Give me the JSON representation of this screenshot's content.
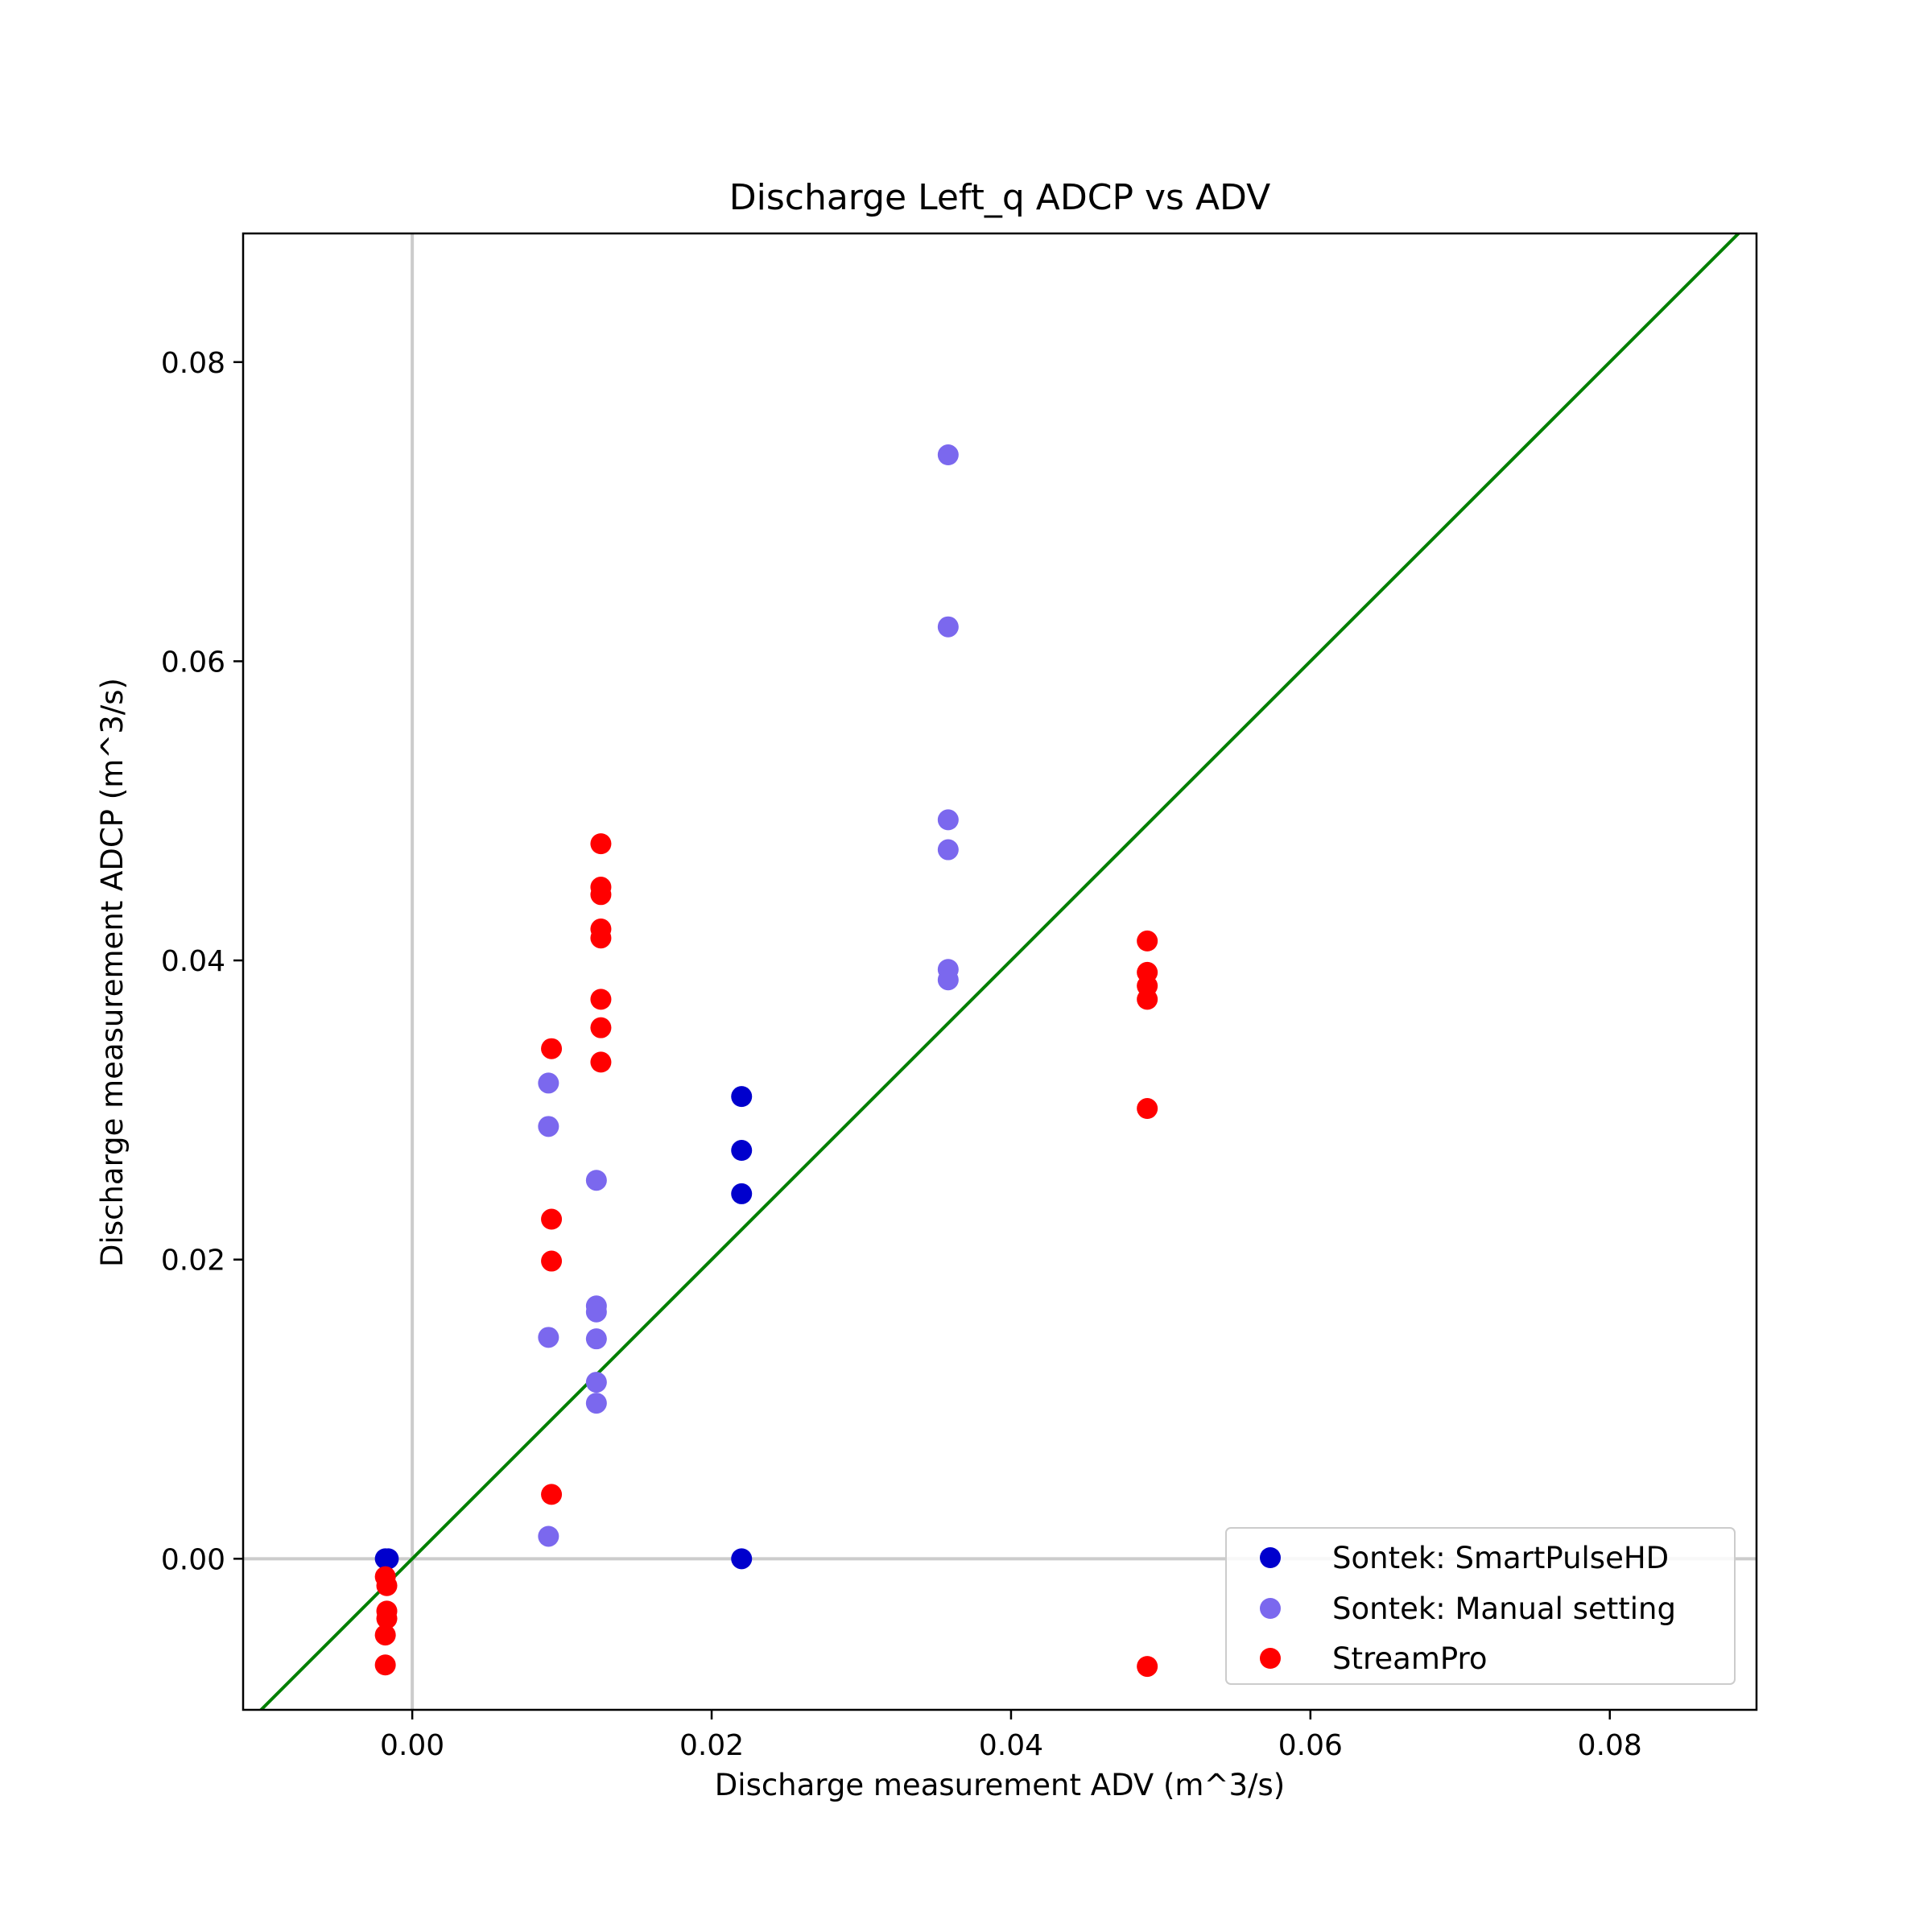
{
  "chart_data": {
    "type": "scatter",
    "title": "Discharge Left_q ADCP  vs ADV",
    "xlabel": "Discharge measurement ADV (m^3/s)",
    "ylabel": "Discharge measurement ADCP (m^3/s)",
    "xlim": [
      -0.0113,
      0.0898
    ],
    "ylim": [
      -0.0101,
      0.0886
    ],
    "xticks": [
      0.0,
      0.02,
      0.04,
      0.06,
      0.08
    ],
    "xtick_labels": [
      "0.00",
      "0.02",
      "0.04",
      "0.06",
      "0.08"
    ],
    "yticks": [
      0.0,
      0.02,
      0.04,
      0.06,
      0.08
    ],
    "ytick_labels": [
      "0.00",
      "0.02",
      "0.04",
      "0.06",
      "0.08"
    ],
    "grid": false,
    "reference_lines": {
      "x_zero": true,
      "y_zero": true,
      "color": "#cccccc"
    },
    "identity_line": {
      "color": "#007f00"
    },
    "legend_position": "lower-right",
    "series": [
      {
        "name": "Sontek: SmartPulseHD",
        "color": "#0000cd",
        "points": [
          [
            -0.0018,
            0.0
          ],
          [
            -0.0016,
            0.0
          ],
          [
            0.022,
            0.0309
          ],
          [
            0.022,
            0.0273
          ],
          [
            0.022,
            0.0244
          ],
          [
            0.022,
            0.0
          ]
        ]
      },
      {
        "name": "Sontek: Manual setting",
        "color": "#7b68ee",
        "points": [
          [
            0.0091,
            0.0318
          ],
          [
            0.0091,
            0.0289
          ],
          [
            0.0091,
            0.0148
          ],
          [
            0.0091,
            0.0015
          ],
          [
            0.0123,
            0.0253
          ],
          [
            0.0123,
            0.0169
          ],
          [
            0.0123,
            0.0165
          ],
          [
            0.0123,
            0.0147
          ],
          [
            0.0123,
            0.0118
          ],
          [
            0.0123,
            0.0104
          ],
          [
            0.0358,
            0.0738
          ],
          [
            0.0358,
            0.0623
          ],
          [
            0.0358,
            0.0494
          ],
          [
            0.0358,
            0.0474
          ],
          [
            0.0358,
            0.0394
          ],
          [
            0.0358,
            0.0387
          ]
        ]
      },
      {
        "name": "StreamPro",
        "color": "#ff0000",
        "points": [
          [
            -0.0018,
            -0.0012
          ],
          [
            -0.0017,
            -0.0018
          ],
          [
            -0.0017,
            -0.0035
          ],
          [
            -0.0017,
            -0.004
          ],
          [
            -0.0018,
            -0.0051
          ],
          [
            -0.0018,
            -0.0071
          ],
          [
            0.0093,
            0.0341
          ],
          [
            0.0093,
            0.0227
          ],
          [
            0.0093,
            0.0199
          ],
          [
            0.0093,
            0.0043
          ],
          [
            0.0126,
            0.0478
          ],
          [
            0.0126,
            0.0449
          ],
          [
            0.0126,
            0.0444
          ],
          [
            0.0126,
            0.0421
          ],
          [
            0.0126,
            0.0415
          ],
          [
            0.0126,
            0.0374
          ],
          [
            0.0126,
            0.0355
          ],
          [
            0.0126,
            0.0332
          ],
          [
            0.0491,
            0.0413
          ],
          [
            0.0491,
            0.0392
          ],
          [
            0.0491,
            0.0383
          ],
          [
            0.0491,
            0.0374
          ],
          [
            0.0491,
            0.0301
          ],
          [
            0.0491,
            -0.0072
          ]
        ]
      }
    ]
  }
}
